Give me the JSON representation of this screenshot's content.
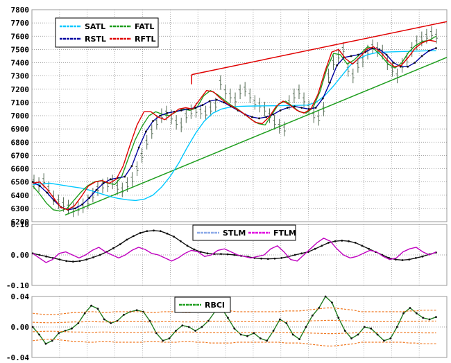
{
  "chart_data": [
    {
      "type": "line",
      "panel": "price",
      "ylim": [
        6200,
        7800
      ],
      "y_ticks": [
        "7800",
        "7700",
        "7600",
        "7500",
        "7400",
        "7300",
        "7200",
        "7100",
        "7000",
        "6900",
        "6800",
        "6700",
        "6600",
        "6500",
        "6400",
        "6300",
        "6200"
      ],
      "grid": true,
      "legend_position": "top-left",
      "bars_ohlc_midpoints": [
        6500,
        6480,
        6510,
        6450,
        6380,
        6350,
        6330,
        6310,
        6290,
        6300,
        6320,
        6350,
        6400,
        6450,
        6470,
        6480,
        6500,
        6460,
        6440,
        6480,
        6520,
        6600,
        6700,
        6800,
        6880,
        6950,
        7000,
        7020,
        6990,
        6950,
        6930,
        7000,
        7030,
        7040,
        7030,
        7020,
        7050,
        7080,
        7250,
        7180,
        7150,
        7120,
        7180,
        7200,
        7150,
        7100,
        7080,
        7050,
        7000,
        6950,
        6920,
        6900,
        7100,
        7150,
        7180,
        7120,
        7060,
        7000,
        6980,
        7050,
        7300,
        7400,
        7450,
        7500,
        7350,
        7300,
        7380,
        7420,
        7480,
        7520,
        7500,
        7480,
        7400,
        7350,
        7300,
        7380,
        7420,
        7500,
        7550,
        7580,
        7600,
        7620,
        7600
      ],
      "series": [
        {
          "name": "SATL",
          "color": "#00c8ff",
          "values": [
            6480,
            6485,
            6490,
            6480,
            6470,
            6460,
            6450,
            6430,
            6410,
            6390,
            6375,
            6365,
            6360,
            6370,
            6400,
            6460,
            6540,
            6640,
            6760,
            6870,
            6960,
            7020,
            7050,
            7065,
            7070,
            7072,
            7073,
            7074,
            7075,
            7076,
            7077,
            7078,
            7080,
            7100,
            7150,
            7220,
            7300,
            7380,
            7430,
            7460,
            7475,
            7480,
            7482,
            7484,
            7486,
            7488,
            7490,
            7490
          ]
        },
        {
          "name": "FATL",
          "color": "#1e9e1e",
          "values": [
            6470,
            6410,
            6340,
            6290,
            6280,
            6300,
            6360,
            6420,
            6470,
            6500,
            6510,
            6490,
            6480,
            6540,
            6680,
            6820,
            6920,
            7000,
            7030,
            7010,
            7000,
            7030,
            7050,
            7040,
            7060,
            7150,
            7190,
            7160,
            7120,
            7080,
            7050,
            7010,
            6970,
            6940,
            6930,
            7010,
            7090,
            7110,
            7070,
            7030,
            7020,
            7060,
            7180,
            7350,
            7470,
            7460,
            7390,
            7420,
            7470,
            7520,
            7500,
            7450,
            7390,
            7360,
            7400,
            7480,
            7530,
            7560,
            7570,
            7600
          ]
        },
        {
          "name": "RSTL",
          "color": "#0000a0",
          "values": [
            6500,
            6470,
            6420,
            6360,
            6310,
            6290,
            6300,
            6330,
            6380,
            6440,
            6490,
            6520,
            6530,
            6540,
            6620,
            6760,
            6880,
            6960,
            7000,
            7020,
            7030,
            7040,
            7050,
            7060,
            7080,
            7110,
            7120,
            7100,
            7070,
            7040,
            7010,
            6990,
            6980,
            6990,
            7010,
            7040,
            7060,
            7070,
            7060,
            7050,
            7060,
            7130,
            7250,
            7380,
            7440,
            7450,
            7460,
            7480,
            7510,
            7500,
            7460,
            7400,
            7370,
            7370,
            7400,
            7450,
            7490,
            7510
          ]
        },
        {
          "name": "RFTL",
          "color": "#e00000",
          "values": [
            6490,
            6500,
            6450,
            6380,
            6310,
            6290,
            6320,
            6390,
            6470,
            6500,
            6510,
            6490,
            6520,
            6620,
            6780,
            6930,
            7030,
            7030,
            6990,
            6970,
            7010,
            7050,
            7060,
            7050,
            7120,
            7190,
            7180,
            7130,
            7090,
            7060,
            7030,
            6990,
            6950,
            6940,
            6990,
            7070,
            7110,
            7080,
            7040,
            7020,
            7050,
            7160,
            7330,
            7480,
            7500,
            7430,
            7390,
            7440,
            7500,
            7520,
            7480,
            7420,
            7370,
            7380,
            7440,
            7510,
            7550,
            7570,
            7560
          ]
        }
      ],
      "trend_lines": [
        {
          "color": "#e00000",
          "from": [
            0.385,
            7310
          ],
          "to": [
            1.0,
            7710
          ]
        },
        {
          "color": "#1e9e1e",
          "from": [
            0.08,
            6250
          ],
          "to": [
            1.0,
            7440
          ]
        }
      ]
    },
    {
      "type": "line",
      "panel": "momentum",
      "ylim": [
        -0.1,
        0.1
      ],
      "y_ticks": [
        "0.10",
        "0.00",
        "-0.10"
      ],
      "grid": true,
      "legend_position": "top-center",
      "series": [
        {
          "name": "STLM",
          "color": "#101010",
          "values": [
            0.005,
            0.0,
            -0.005,
            -0.01,
            -0.015,
            -0.02,
            -0.022,
            -0.02,
            -0.015,
            -0.008,
            0.0,
            0.01,
            0.022,
            0.035,
            0.05,
            0.062,
            0.072,
            0.078,
            0.08,
            0.078,
            0.07,
            0.06,
            0.045,
            0.03,
            0.018,
            0.01,
            0.005,
            0.003,
            0.003,
            0.002,
            0.0,
            -0.003,
            -0.006,
            -0.01,
            -0.012,
            -0.013,
            -0.012,
            -0.01,
            -0.006,
            0.0,
            0.005,
            0.01,
            0.02,
            0.03,
            0.04,
            0.045,
            0.047,
            0.045,
            0.04,
            0.03,
            0.02,
            0.01,
            0.0,
            -0.01,
            -0.015,
            -0.017,
            -0.015,
            -0.01,
            -0.005,
            0.002,
            0.008
          ]
        },
        {
          "name": "FTLM",
          "color": "#c000c0",
          "values": [
            0.005,
            -0.01,
            -0.025,
            -0.015,
            0.005,
            0.01,
            0.0,
            -0.01,
            0.0,
            0.015,
            0.025,
            0.01,
            0.0,
            -0.01,
            0.0,
            0.015,
            0.025,
            0.018,
            0.005,
            0.0,
            -0.01,
            -0.02,
            -0.01,
            0.005,
            0.015,
            0.01,
            -0.005,
            0.0,
            0.015,
            0.02,
            0.01,
            0.0,
            -0.005,
            -0.01,
            -0.005,
            0.0,
            0.02,
            0.03,
            0.01,
            -0.015,
            -0.02,
            0.0,
            0.02,
            0.04,
            0.055,
            0.045,
            0.02,
            0.0,
            -0.01,
            -0.005,
            0.005,
            0.015,
            0.01,
            -0.005,
            -0.015,
            -0.01,
            0.01,
            0.02,
            0.025,
            0.01,
            0.0,
            0.01
          ]
        }
      ]
    },
    {
      "type": "line",
      "panel": "rbci",
      "ylim": [
        -0.04,
        0.04
      ],
      "y_ticks": [
        "0.04",
        "0.00",
        "-0.04"
      ],
      "grid": true,
      "legend_position": "top-center",
      "series": [
        {
          "name": "RBCI",
          "color": "#1e7a1e",
          "values": [
            0.0,
            -0.01,
            -0.022,
            -0.018,
            -0.008,
            -0.005,
            -0.002,
            0.005,
            0.018,
            0.028,
            0.024,
            0.01,
            0.005,
            0.008,
            0.016,
            0.02,
            0.022,
            0.02,
            0.008,
            -0.008,
            -0.018,
            -0.015,
            -0.005,
            0.002,
            0.0,
            -0.005,
            0.0,
            0.008,
            0.02,
            0.025,
            0.012,
            -0.002,
            -0.01,
            -0.012,
            -0.008,
            -0.015,
            -0.018,
            -0.005,
            0.01,
            0.005,
            -0.01,
            -0.016,
            0.0,
            0.015,
            0.025,
            0.04,
            0.032,
            0.012,
            -0.005,
            -0.015,
            -0.01,
            0.0,
            -0.002,
            -0.01,
            -0.018,
            -0.015,
            0.0,
            0.018,
            0.025,
            0.018,
            0.012,
            0.01,
            0.013
          ]
        },
        {
          "name": "band",
          "color": "#f07820",
          "values": [
            0.018,
            0.017,
            0.016,
            0.016,
            0.017,
            0.018,
            0.019,
            0.019,
            0.02,
            0.02,
            0.019,
            0.019,
            0.02,
            0.02,
            0.02,
            0.02,
            0.02,
            0.019,
            0.019,
            0.02,
            0.02,
            0.02,
            0.019,
            0.019,
            0.02,
            0.02,
            0.021,
            0.021,
            0.021,
            0.021,
            0.02,
            0.02,
            0.02,
            0.02,
            0.02,
            0.02,
            0.02,
            0.021,
            0.021,
            0.021,
            0.022,
            0.023,
            0.024,
            0.025,
            0.025,
            0.024,
            0.023,
            0.022,
            0.02,
            0.02,
            0.02,
            0.02,
            0.02,
            0.02,
            0.02,
            0.021,
            0.021,
            0.022,
            0.022,
            0.022
          ]
        }
      ]
    }
  ]
}
